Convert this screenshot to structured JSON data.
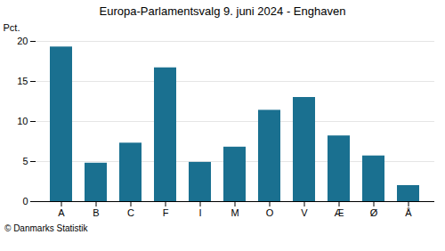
{
  "chart_data": {
    "type": "bar",
    "title": "Europa-Parlamentsvalg 9. juni 2024 - Enghaven",
    "categories": [
      "A",
      "B",
      "C",
      "F",
      "I",
      "M",
      "O",
      "V",
      "Æ",
      "Ø",
      "Å"
    ],
    "values": [
      19.3,
      4.8,
      7.3,
      16.7,
      4.9,
      6.8,
      11.4,
      13.0,
      8.2,
      5.7,
      2.0
    ],
    "color": "#1a7090",
    "ylabel": "Pct.",
    "caption": "© Danmarks Statistik",
    "ylim": [
      0,
      20
    ],
    "yticks": [
      0,
      5,
      10,
      15,
      20
    ],
    "grid": true
  }
}
